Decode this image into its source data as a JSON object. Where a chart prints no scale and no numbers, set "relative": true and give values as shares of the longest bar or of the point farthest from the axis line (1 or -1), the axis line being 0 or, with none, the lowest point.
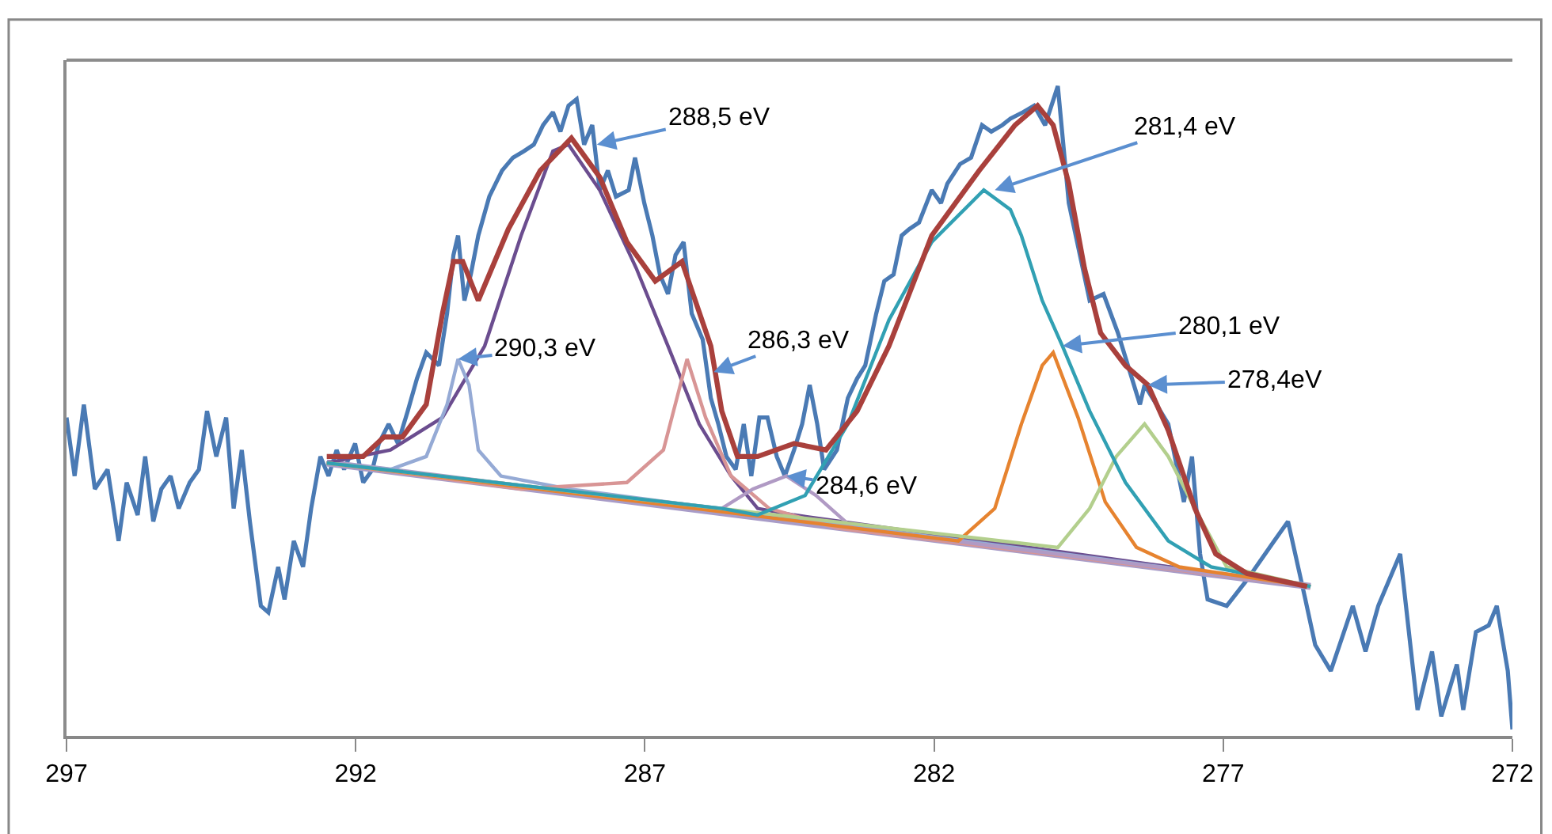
{
  "chart_data": {
    "type": "line",
    "relative": true,
    "xlim": [
      297,
      272
    ],
    "xticks": [
      297,
      292,
      287,
      282,
      277,
      272
    ],
    "tick_labels": "x",
    "marker": "none",
    "line_style": "solid",
    "series": [
      {
        "color": "#4a7ab4",
        "x": [
          297.0,
          296.86,
          296.7,
          296.51,
          296.29,
          296.1,
          295.96,
          295.77,
          295.64,
          295.5,
          295.36,
          295.2,
          295.06,
          294.87,
          294.71,
          294.57,
          294.41,
          294.24,
          294.11,
          293.97,
          293.83,
          293.64,
          293.51,
          293.34,
          293.23,
          293.07,
          292.91,
          292.77,
          292.61,
          292.47,
          292.33,
          292.2,
          292.01,
          291.87,
          291.71,
          291.6,
          291.43,
          291.27,
          291.1,
          290.94,
          290.78,
          290.56,
          290.42,
          290.31,
          290.23,
          290.12,
          290.01,
          289.88,
          289.69,
          289.47,
          289.28,
          289.09,
          288.92,
          288.76,
          288.59,
          288.46,
          288.32,
          288.18,
          288.05,
          287.91,
          287.78,
          287.64,
          287.5,
          287.28,
          287.17,
          287.01,
          286.87,
          286.74,
          286.6,
          286.47,
          286.33,
          286.19,
          286.0,
          285.86,
          285.73,
          285.59,
          285.43,
          285.29,
          285.16,
          285.02,
          284.88,
          284.72,
          284.58,
          284.42,
          284.28,
          284.15,
          284.02,
          283.9,
          283.68,
          283.49,
          283.33,
          283.19,
          283.0,
          282.86,
          282.7,
          282.56,
          282.43,
          282.26,
          282.04,
          281.88,
          281.77,
          281.55,
          281.36,
          281.17,
          281.01,
          280.82,
          280.68,
          280.46,
          280.27,
          280.08,
          279.86,
          279.67,
          279.31,
          279.07,
          278.82,
          278.44,
          278.36,
          277.95,
          277.68,
          277.54,
          277.4,
          277.27,
          276.94,
          276.59,
          276.12,
          275.88,
          275.58,
          275.41,
          275.14,
          274.76,
          274.54,
          274.32,
          273.94,
          273.64,
          273.39,
          273.23,
          272.96,
          272.85,
          272.63,
          272.41,
          272.27,
          272.08,
          272.0
        ],
        "values": [
          0.49,
          0.4,
          0.51,
          0.38,
          0.41,
          0.3,
          0.39,
          0.34,
          0.43,
          0.33,
          0.38,
          0.4,
          0.35,
          0.39,
          0.41,
          0.5,
          0.43,
          0.49,
          0.35,
          0.44,
          0.33,
          0.2,
          0.19,
          0.26,
          0.21,
          0.3,
          0.26,
          0.35,
          0.43,
          0.4,
          0.44,
          0.41,
          0.45,
          0.39,
          0.41,
          0.45,
          0.48,
          0.45,
          0.5,
          0.55,
          0.59,
          0.57,
          0.65,
          0.74,
          0.77,
          0.67,
          0.71,
          0.77,
          0.83,
          0.87,
          0.89,
          0.9,
          0.91,
          0.94,
          0.96,
          0.93,
          0.97,
          0.98,
          0.91,
          0.94,
          0.84,
          0.87,
          0.83,
          0.84,
          0.89,
          0.82,
          0.77,
          0.71,
          0.68,
          0.74,
          0.76,
          0.65,
          0.61,
          0.52,
          0.48,
          0.43,
          0.41,
          0.48,
          0.4,
          0.49,
          0.49,
          0.43,
          0.4,
          0.44,
          0.48,
          0.54,
          0.48,
          0.41,
          0.44,
          0.52,
          0.55,
          0.57,
          0.65,
          0.7,
          0.71,
          0.77,
          0.78,
          0.79,
          0.84,
          0.82,
          0.85,
          0.88,
          0.89,
          0.94,
          0.93,
          0.94,
          0.95,
          0.96,
          0.97,
          0.94,
          1.0,
          0.82,
          0.67,
          0.68,
          0.62,
          0.51,
          0.54,
          0.48,
          0.36,
          0.43,
          0.28,
          0.21,
          0.2,
          0.24,
          0.3,
          0.33,
          0.21,
          0.14,
          0.1,
          0.2,
          0.13,
          0.2,
          0.28,
          0.04,
          0.13,
          0.03,
          0.11,
          0.04,
          0.16,
          0.17,
          0.2,
          0.1,
          0.01
        ]
      },
      {
        "color": "#a89cc8",
        "x": [
          292.5,
          275.49
        ],
        "values": [
          0.42,
          0.23
        ]
      },
      {
        "color": "#6b4d8f",
        "x": [
          292.5,
          291.4,
          290.5,
          289.77,
          289.14,
          288.59,
          288.32,
          287.78,
          287.15,
          286.6,
          286.06,
          285.51,
          285.05,
          284.42,
          275.49
        ],
        "values": [
          0.42,
          0.44,
          0.49,
          0.6,
          0.77,
          0.9,
          0.91,
          0.84,
          0.72,
          0.6,
          0.48,
          0.4,
          0.35,
          0.34,
          0.23
        ]
      },
      {
        "color": "#95aad5",
        "x": [
          292.5,
          291.4,
          290.78,
          290.42,
          290.23,
          290.04,
          289.88,
          289.49,
          288.32,
          275.49
        ],
        "values": [
          0.42,
          0.41,
          0.43,
          0.51,
          0.58,
          0.54,
          0.44,
          0.4,
          0.38,
          0.23
        ]
      },
      {
        "color": "#d89595",
        "x": [
          292.5,
          289.14,
          287.31,
          286.68,
          286.27,
          285.95,
          285.51,
          284.85,
          283.68,
          275.49
        ],
        "values": [
          0.42,
          0.38,
          0.39,
          0.44,
          0.58,
          0.49,
          0.4,
          0.35,
          0.32,
          0.23
        ]
      },
      {
        "color": "#b09ac4",
        "x": [
          292.5,
          285.67,
          285.13,
          284.55,
          284.04,
          283.41,
          275.49
        ],
        "values": [
          0.42,
          0.35,
          0.38,
          0.4,
          0.37,
          0.32,
          0.23
        ]
      },
      {
        "color": "#e6832f",
        "x": [
          292.5,
          281.58,
          280.95,
          280.49,
          280.13,
          279.94,
          279.51,
          279.04,
          278.5,
          277.76,
          275.49
        ],
        "values": [
          0.42,
          0.3,
          0.35,
          0.48,
          0.57,
          0.59,
          0.49,
          0.36,
          0.29,
          0.26,
          0.23
        ]
      },
      {
        "color": "#b3cf8d",
        "x": [
          292.5,
          279.86,
          279.31,
          278.85,
          278.36,
          277.95,
          277.49,
          276.94,
          275.49
        ],
        "values": [
          0.42,
          0.29,
          0.35,
          0.43,
          0.48,
          0.43,
          0.35,
          0.26,
          0.23
        ]
      },
      {
        "color": "#31a0b3",
        "x": [
          292.5,
          285.67,
          285.05,
          284.23,
          283.49,
          282.78,
          282.04,
          281.14,
          280.68,
          280.49,
          280.13,
          279.78,
          279.31,
          278.69,
          277.95,
          277.21,
          275.49
        ],
        "values": [
          0.42,
          0.35,
          0.34,
          0.37,
          0.48,
          0.64,
          0.76,
          0.84,
          0.81,
          0.77,
          0.67,
          0.6,
          0.5,
          0.39,
          0.3,
          0.26,
          0.23
        ]
      },
      {
        "color": "#a9403c",
        "x": [
          292.5,
          291.87,
          291.51,
          291.19,
          290.78,
          290.5,
          290.31,
          290.15,
          289.88,
          289.36,
          288.81,
          288.27,
          287.78,
          287.31,
          286.82,
          286.36,
          285.86,
          285.67,
          285.4,
          285.05,
          284.42,
          283.87,
          283.33,
          282.78,
          282.04,
          281.22,
          280.6,
          280.21,
          279.94,
          279.67,
          279.4,
          279.12,
          278.69,
          278.3,
          277.95,
          277.49,
          277.13,
          276.59,
          275.55
        ],
        "values": [
          0.43,
          0.43,
          0.46,
          0.46,
          0.51,
          0.65,
          0.73,
          0.73,
          0.67,
          0.78,
          0.87,
          0.92,
          0.86,
          0.76,
          0.7,
          0.73,
          0.6,
          0.5,
          0.43,
          0.43,
          0.45,
          0.44,
          0.5,
          0.6,
          0.77,
          0.87,
          0.94,
          0.97,
          0.94,
          0.85,
          0.72,
          0.62,
          0.57,
          0.54,
          0.47,
          0.35,
          0.28,
          0.25,
          0.23
        ]
      }
    ],
    "annotations": [
      {
        "text": "288,5 eV",
        "x": 287.83,
        "y": 0.91
      },
      {
        "text": "290,3 eV",
        "x": 290.23,
        "y": 0.58
      },
      {
        "text": "286,3 eV",
        "x": 285.81,
        "y": 0.56
      },
      {
        "text": "284,6 eV",
        "x": 284.55,
        "y": 0.4
      },
      {
        "text": "281,4 eV",
        "x": 280.95,
        "y": 0.84
      },
      {
        "text": "280,1 eV",
        "x": 279.78,
        "y": 0.6
      },
      {
        "text": "278,4eV",
        "x": 278.3,
        "y": 0.54
      }
    ]
  }
}
